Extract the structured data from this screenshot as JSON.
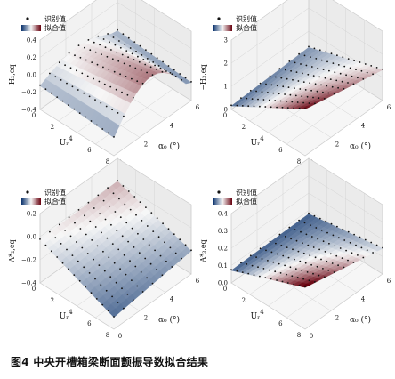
{
  "figure_caption": "图4  中央开槽箱梁断面颤振导数拟合结果",
  "legend": {
    "identified_label": "识别值",
    "fitted_label": "拟合值"
  },
  "colormap": {
    "low": "#08306b",
    "mid": "#f7f7f7",
    "high": "#67000d"
  },
  "point_color": "#111111",
  "chart_data": [
    {
      "type": "surface3d",
      "zlabel": "−H₂,eq",
      "xlabel": "Uᵣ",
      "ylabel": "α₀ (°)",
      "xticks": [
        "0",
        "2",
        "4",
        "6",
        "8"
      ],
      "yticks": [
        "0",
        "2",
        "4",
        "6"
      ],
      "zticks": [
        "−0.4",
        "−0.2",
        "0.0",
        "0.2",
        "0.4"
      ],
      "xlim": [
        0,
        8
      ],
      "ylim": [
        0,
        6
      ],
      "zlim": [
        -0.4,
        0.4
      ]
    },
    {
      "type": "surface3d",
      "zlabel": "−H₃,eq",
      "xlabel": "Uᵣ",
      "ylabel": "α₀ (°)",
      "xticks": [
        "0",
        "2",
        "4",
        "6",
        "8"
      ],
      "yticks": [
        "0",
        "2",
        "4",
        "6"
      ],
      "zticks": [
        "0",
        "1",
        "2",
        "3"
      ],
      "xlim": [
        0,
        8
      ],
      "ylim": [
        0,
        6
      ],
      "zlim": [
        0,
        3
      ]
    },
    {
      "type": "surface3d",
      "zlabel": "A*₂,eq",
      "xlabel": "Uᵣ",
      "ylabel": "α₀ (°)",
      "xticks": [
        "0",
        "2",
        "4",
        "6",
        "8"
      ],
      "yticks": [
        "0",
        "2",
        "4",
        "6"
      ],
      "zticks": [
        "−0.4",
        "−0.2",
        "0.0",
        "0.2"
      ],
      "xlim": [
        0,
        8
      ],
      "ylim": [
        0,
        6
      ],
      "zlim": [
        -0.4,
        0.2
      ]
    },
    {
      "type": "surface3d",
      "zlabel": "A*₃,eq",
      "xlabel": "Uᵣ",
      "ylabel": "α₀ (°)",
      "xticks": [
        "0",
        "2",
        "4",
        "6",
        "8"
      ],
      "yticks": [
        "0",
        "2",
        "4",
        "6"
      ],
      "zticks": [
        "0.0",
        "0.1",
        "0.2",
        "0.3",
        "0.4"
      ],
      "xlim": [
        0,
        8
      ],
      "ylim": [
        0,
        6
      ],
      "zlim": [
        0,
        0.4
      ]
    }
  ]
}
